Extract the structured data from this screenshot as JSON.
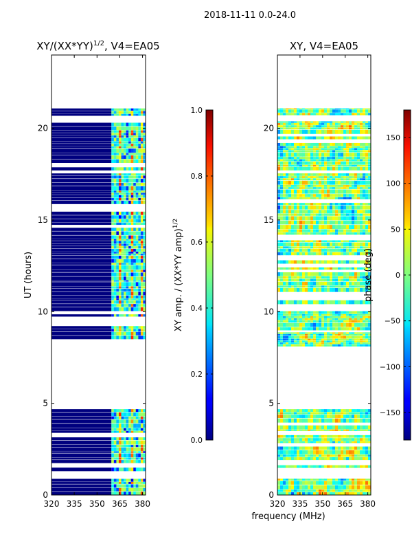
{
  "suptitle": "2018-11-11 0.0-24.0",
  "shared_xlabel": "frequency (MHz)",
  "chart_data": [
    {
      "type": "heatmap",
      "title_main": "XY/(XX*YY)",
      "title_exp": "1/2",
      "title_rest": ", V4=EA05",
      "ylabel": "UT (hours)",
      "xlim": [
        320,
        382
      ],
      "ylim": [
        0,
        24
      ],
      "xticks": [
        "320",
        "335",
        "350",
        "365",
        "380"
      ],
      "xtick_values": [
        320,
        335,
        350,
        365,
        380
      ],
      "yticks": [
        "0",
        "5",
        "10",
        "15",
        "20"
      ],
      "ytick_values": [
        0,
        5,
        10,
        15,
        20
      ],
      "colormap": "jet",
      "colorbar": {
        "label_main": "XY amp. / (XX*YY amp)",
        "label_exp": "1/2",
        "ticks": [
          "0.0",
          "0.2",
          "0.4",
          "0.6",
          "0.8",
          "1.0"
        ],
        "tick_values": [
          0.0,
          0.2,
          0.4,
          0.6,
          0.8,
          1.0
        ],
        "range": [
          0.0,
          1.0
        ]
      },
      "data_coverage_hours": [
        [
          0,
          0.9
        ],
        [
          1.3,
          4.7
        ],
        [
          8.1,
          21.1
        ]
      ],
      "signal_band_mhz": [
        359.5,
        382
      ]
    },
    {
      "type": "heatmap",
      "title_main": "XY, V4=EA05",
      "xlim": [
        320,
        382
      ],
      "ylim": [
        0,
        24
      ],
      "xticks": [
        "320",
        "335",
        "350",
        "365",
        "380"
      ],
      "xtick_values": [
        320,
        335,
        350,
        365,
        380
      ],
      "yticks": [
        "0",
        "5",
        "10",
        "15",
        "20"
      ],
      "ytick_values": [
        0,
        5,
        10,
        15,
        20
      ],
      "colormap": "jet",
      "colorbar": {
        "label_main": "phase (deg)",
        "ticks": [
          "−150",
          "−100",
          "−50",
          "0",
          "50",
          "100",
          "150"
        ],
        "tick_values": [
          -150,
          -100,
          -50,
          0,
          50,
          100,
          150
        ],
        "range": [
          -180,
          180
        ]
      },
      "data_coverage_hours": [
        [
          0,
          0.9
        ],
        [
          1.3,
          4.7
        ],
        [
          8.1,
          21.1
        ]
      ]
    }
  ]
}
